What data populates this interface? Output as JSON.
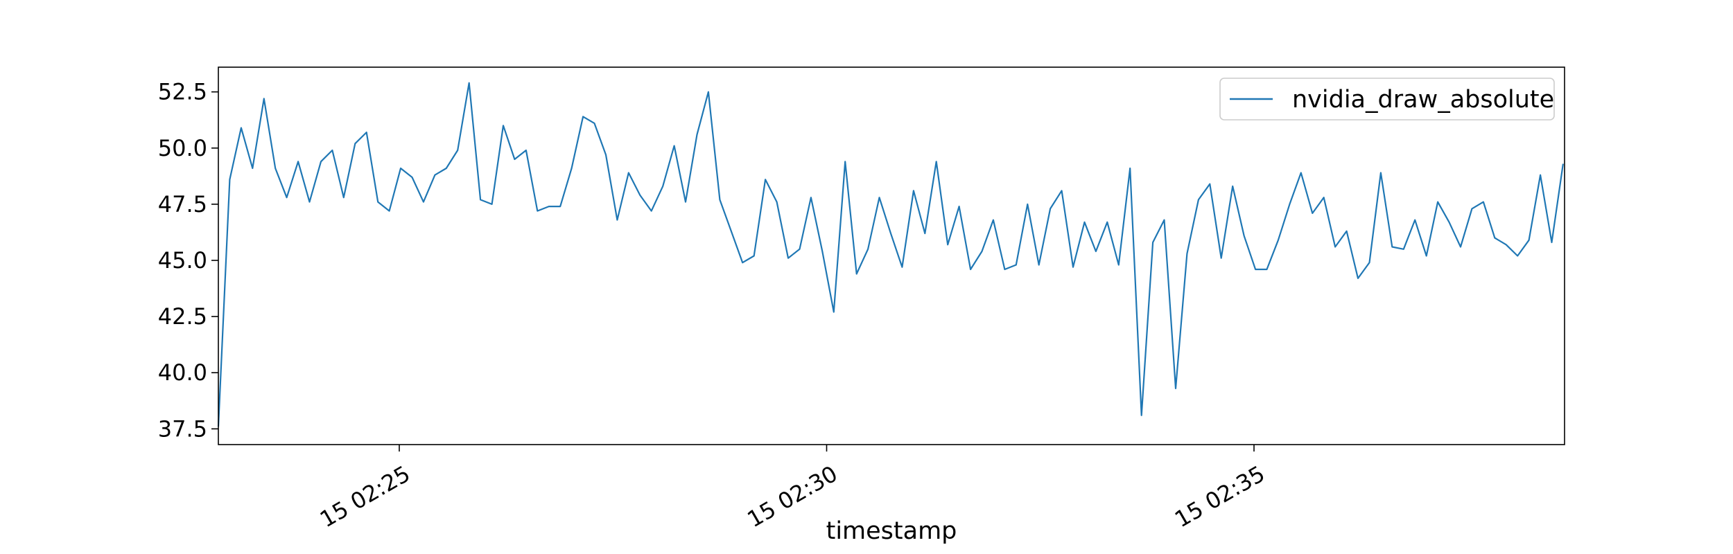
{
  "chart_data": {
    "type": "line",
    "xlabel": "timestamp",
    "ylabel": "",
    "title": "",
    "grid": false,
    "legend_position": "top-right",
    "line_color": "#1f77b4",
    "xlim": [
      "15 02:22:53",
      "15 02:38:38"
    ],
    "ylim": [
      36.8,
      53.6
    ],
    "x_ticks": [
      {
        "value": "15 02:25:00",
        "label": "15 02:25"
      },
      {
        "value": "15 02:30:00",
        "label": "15 02:30"
      },
      {
        "value": "15 02:35:00",
        "label": "15 02:35"
      }
    ],
    "y_ticks": [
      {
        "value": 37.5,
        "label": "37.5"
      },
      {
        "value": 40.0,
        "label": "40.0"
      },
      {
        "value": 42.5,
        "label": "42.5"
      },
      {
        "value": 45.0,
        "label": "45.0"
      },
      {
        "value": 47.5,
        "label": "47.5"
      },
      {
        "value": 50.0,
        "label": "50.0"
      },
      {
        "value": 52.5,
        "label": "52.5"
      }
    ],
    "series": [
      {
        "name": "nvidia_draw_absolute",
        "x": [
          "15 02:22:53",
          "15 02:23:01",
          "15 02:23:09",
          "15 02:23:17",
          "15 02:23:25",
          "15 02:23:33",
          "15 02:23:41",
          "15 02:23:49",
          "15 02:23:57",
          "15 02:24:05",
          "15 02:24:13",
          "15 02:24:21",
          "15 02:24:29",
          "15 02:24:37",
          "15 02:24:45",
          "15 02:24:53",
          "15 02:25:01",
          "15 02:25:09",
          "15 02:25:17",
          "15 02:25:25",
          "15 02:25:33",
          "15 02:25:41",
          "15 02:25:49",
          "15 02:25:57",
          "15 02:26:05",
          "15 02:26:13",
          "15 02:26:21",
          "15 02:26:29",
          "15 02:26:37",
          "15 02:26:45",
          "15 02:26:53",
          "15 02:27:01",
          "15 02:27:09",
          "15 02:27:17",
          "15 02:27:25",
          "15 02:27:33",
          "15 02:27:41",
          "15 02:27:49",
          "15 02:27:57",
          "15 02:28:05",
          "15 02:28:13",
          "15 02:28:21",
          "15 02:28:29",
          "15 02:28:37",
          "15 02:28:45",
          "15 02:28:53",
          "15 02:29:01",
          "15 02:29:09",
          "15 02:29:17",
          "15 02:29:25",
          "15 02:29:33",
          "15 02:29:41",
          "15 02:29:49",
          "15 02:29:57",
          "15 02:30:05",
          "15 02:30:13",
          "15 02:30:21",
          "15 02:30:29",
          "15 02:30:37",
          "15 02:30:45",
          "15 02:30:53",
          "15 02:31:01",
          "15 02:31:09",
          "15 02:31:17",
          "15 02:31:25",
          "15 02:31:33",
          "15 02:31:41",
          "15 02:31:49",
          "15 02:31:57",
          "15 02:32:05",
          "15 02:32:13",
          "15 02:32:21",
          "15 02:32:29",
          "15 02:32:37",
          "15 02:32:45",
          "15 02:32:53",
          "15 02:33:01",
          "15 02:33:09",
          "15 02:33:17",
          "15 02:33:25",
          "15 02:33:33",
          "15 02:33:41",
          "15 02:33:49",
          "15 02:33:57",
          "15 02:34:05",
          "15 02:34:13",
          "15 02:34:21",
          "15 02:34:29",
          "15 02:34:37",
          "15 02:34:45",
          "15 02:34:53",
          "15 02:35:01",
          "15 02:35:09",
          "15 02:35:17",
          "15 02:35:25",
          "15 02:35:33",
          "15 02:35:41",
          "15 02:35:49",
          "15 02:35:57",
          "15 02:36:05",
          "15 02:36:13",
          "15 02:36:21",
          "15 02:36:29",
          "15 02:36:37",
          "15 02:36:45",
          "15 02:36:53",
          "15 02:37:01",
          "15 02:37:09",
          "15 02:37:17",
          "15 02:37:25",
          "15 02:37:33",
          "15 02:37:41",
          "15 02:37:49",
          "15 02:37:57",
          "15 02:38:05",
          "15 02:38:13",
          "15 02:38:21",
          "15 02:38:29",
          "15 02:38:37"
        ],
        "values": [
          37.6,
          48.6,
          50.9,
          49.1,
          52.2,
          49.1,
          47.8,
          49.4,
          47.6,
          49.4,
          49.9,
          47.8,
          50.2,
          50.7,
          47.6,
          47.2,
          49.1,
          48.7,
          47.6,
          48.8,
          49.1,
          49.9,
          52.9,
          47.7,
          47.5,
          51.0,
          49.5,
          49.9,
          47.2,
          47.4,
          47.4,
          49.1,
          51.4,
          51.1,
          49.7,
          46.8,
          48.9,
          47.9,
          47.2,
          48.3,
          50.1,
          47.6,
          50.6,
          52.5,
          47.7,
          46.3,
          44.9,
          45.2,
          48.6,
          47.6,
          45.1,
          45.5,
          47.8,
          45.4,
          42.7,
          49.4,
          44.4,
          45.5,
          47.8,
          46.2,
          44.7,
          48.1,
          46.2,
          49.4,
          45.7,
          47.4,
          44.6,
          45.4,
          46.8,
          44.6,
          44.8,
          47.5,
          44.8,
          47.3,
          48.1,
          44.7,
          46.7,
          45.4,
          46.7,
          44.8,
          49.1,
          38.1,
          45.8,
          46.8,
          39.3,
          45.3,
          47.7,
          48.4,
          45.1,
          48.3,
          46.1,
          44.6,
          44.6,
          45.9,
          47.5,
          48.9,
          47.1,
          47.8,
          45.6,
          46.3,
          44.2,
          44.9,
          48.9,
          45.6,
          45.5,
          46.8,
          45.2,
          47.6,
          46.7,
          45.6,
          47.3,
          47.6,
          46.0,
          45.7,
          45.2,
          45.9,
          48.8,
          45.8,
          49.3
        ]
      }
    ]
  }
}
